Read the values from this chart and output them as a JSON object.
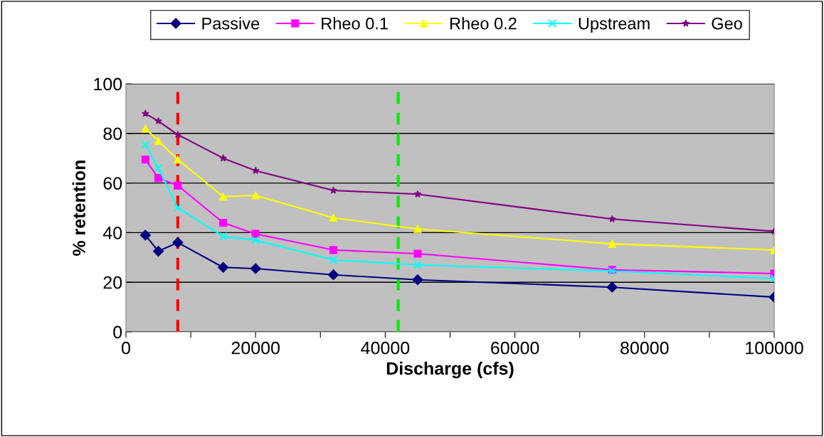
{
  "chart_data": {
    "type": "line",
    "xlabel": "Discharge (cfs)",
    "ylabel": "% retention",
    "x": [
      3000,
      5000,
      8000,
      15000,
      20000,
      32000,
      45000,
      75000,
      100000
    ],
    "series": [
      {
        "name": "Passive",
        "color": "#000080",
        "marker": "diamond",
        "values": [
          39,
          32.5,
          36,
          26,
          25.5,
          23,
          21,
          18,
          14
        ]
      },
      {
        "name": "Rheo 0.1",
        "color": "#ff00ff",
        "marker": "square",
        "values": [
          69.5,
          62,
          59,
          44,
          39.5,
          33,
          31.5,
          25,
          23.5
        ]
      },
      {
        "name": "Rheo 0.2",
        "color": "#ffff00",
        "marker": "triangle",
        "values": [
          82,
          77,
          69.5,
          54.5,
          55,
          46,
          41.5,
          35.5,
          33
        ]
      },
      {
        "name": "Upstream",
        "color": "#00ffff",
        "marker": "cross",
        "values": [
          75.5,
          66,
          50,
          38.5,
          37,
          29,
          27,
          24.5,
          21.5
        ]
      },
      {
        "name": "Geo",
        "color": "#800080",
        "marker": "star",
        "values": [
          88,
          85,
          79.5,
          70,
          65,
          57,
          55.5,
          45.5,
          40.5
        ]
      }
    ],
    "xlim": [
      0,
      100000
    ],
    "xticks": [
      0,
      {
        "value": 10000,
        "label": null
      },
      20000,
      {
        "value": 30000,
        "label": null
      },
      40000,
      {
        "value": 50000,
        "label": null
      },
      60000,
      {
        "value": 70000,
        "label": null
      },
      80000,
      {
        "value": 90000,
        "label": null
      },
      100000
    ],
    "ylim": [
      0,
      100
    ],
    "yticks": [
      0,
      20,
      40,
      60,
      80,
      100
    ],
    "grid": "y",
    "legend": "top",
    "ref_lines": [
      {
        "axis": "x",
        "value": 8000,
        "color": "#ff0000",
        "line_style": "dashed"
      },
      {
        "axis": "x",
        "value": 42000,
        "color": "#00ee00",
        "line_style": "dashed"
      }
    ]
  }
}
